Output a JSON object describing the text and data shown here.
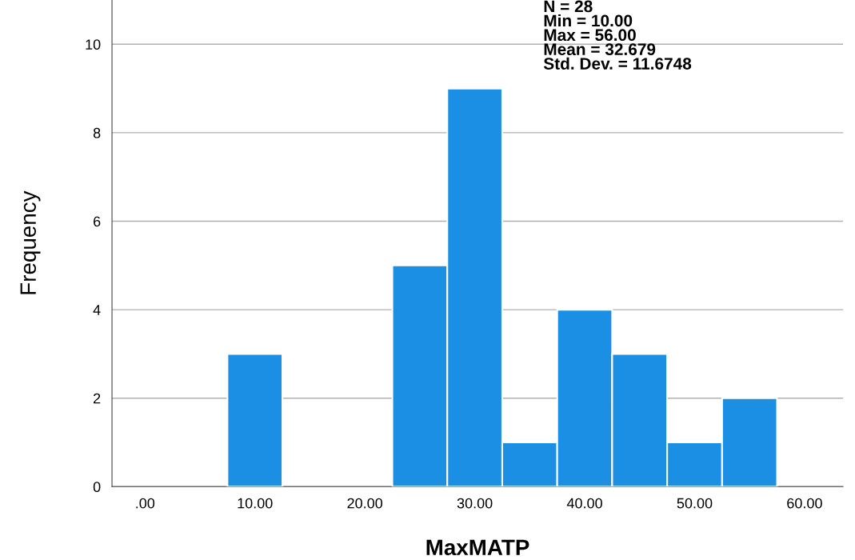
{
  "chart_data": {
    "type": "histogram",
    "xlabel": "MaxMATP",
    "ylabel": "Frequency",
    "bins": [
      7.5,
      12.5,
      17.5,
      22.5,
      27.5,
      32.5,
      37.5,
      42.5,
      47.5,
      52.5,
      57.5
    ],
    "values": [
      3,
      0,
      0,
      5,
      9,
      1,
      4,
      3,
      1,
      2
    ],
    "color": "#1a8fe3",
    "xlim": [
      -3,
      63.5
    ],
    "xticks": [
      {
        "value": 0,
        "label": ".00"
      },
      {
        "value": 10,
        "label": "10.00"
      },
      {
        "value": 20,
        "label": "20.00"
      },
      {
        "value": 30,
        "label": "30.00"
      },
      {
        "value": 40,
        "label": "40.00"
      },
      {
        "value": 50,
        "label": "50.00"
      },
      {
        "value": 60,
        "label": "60.00"
      }
    ],
    "ylim": [
      0,
      11
    ],
    "yticks": [
      0,
      2,
      4,
      6,
      8,
      10
    ],
    "grid": "y",
    "annotations": [
      "N = 28\nMin = 10.00\nMax = 56.00\nMean = 32.679\nStd. Dev. = 11.6748"
    ]
  }
}
